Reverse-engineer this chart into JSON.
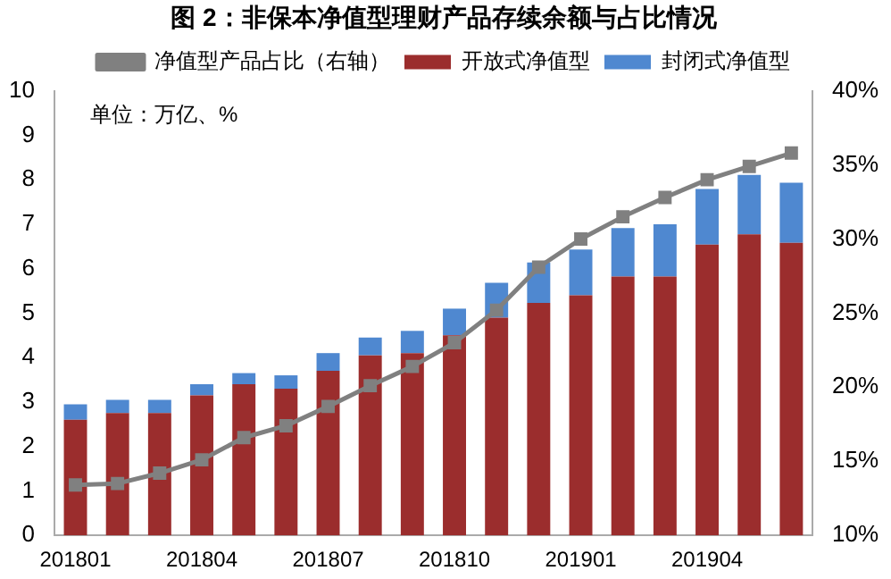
{
  "chart_data": {
    "type": "bar",
    "title": "图 2：非保本净值型理财产品存续余额与占比情况",
    "annotations": [
      "单位：万亿、%"
    ],
    "categories": [
      "201801",
      null,
      null,
      "201804",
      null,
      null,
      "201807",
      null,
      null,
      "201810",
      null,
      null,
      "201901",
      null,
      null,
      "201904",
      null,
      null
    ],
    "stacked": true,
    "legend": "top",
    "marker": "square",
    "grid": false,
    "ylim": [
      0,
      10
    ],
    "yticks": [
      0,
      1,
      2,
      3,
      4,
      5,
      6,
      7,
      8,
      9,
      10
    ],
    "y2lim": [
      10,
      40
    ],
    "y2ticks": [
      {
        "value": 10,
        "label": "10%"
      },
      {
        "value": 15,
        "label": "15%"
      },
      {
        "value": 20,
        "label": "20%"
      },
      {
        "value": 25,
        "label": "25%"
      },
      {
        "value": 30,
        "label": "30%"
      },
      {
        "value": 35,
        "label": "35%"
      },
      {
        "value": 40,
        "label": "40%"
      }
    ],
    "series": [
      {
        "name": "开放式净值型",
        "color": "#9b2d2d",
        "values": [
          2.6,
          2.75,
          2.75,
          3.15,
          3.4,
          3.3,
          3.7,
          4.05,
          4.1,
          4.5,
          4.9,
          5.23,
          5.4,
          5.82,
          5.82,
          6.54,
          6.77,
          6.58
        ]
      },
      {
        "name": "封闭式净值型",
        "color": "#4f88d0",
        "values": [
          0.35,
          0.3,
          0.3,
          0.25,
          0.25,
          0.3,
          0.4,
          0.4,
          0.5,
          0.6,
          0.78,
          0.91,
          1.03,
          1.09,
          1.18,
          1.25,
          1.34,
          1.35
        ]
      },
      {
        "name": "净值型产品占比（右轴）",
        "type": "line",
        "axis": "y2",
        "color": "#808080",
        "values": [
          13.4,
          13.5,
          14.2,
          15.1,
          16.6,
          17.4,
          18.7,
          20.1,
          21.4,
          23.0,
          25.2,
          28.1,
          30.0,
          31.5,
          32.8,
          34.0,
          34.9,
          35.8
        ]
      }
    ]
  }
}
